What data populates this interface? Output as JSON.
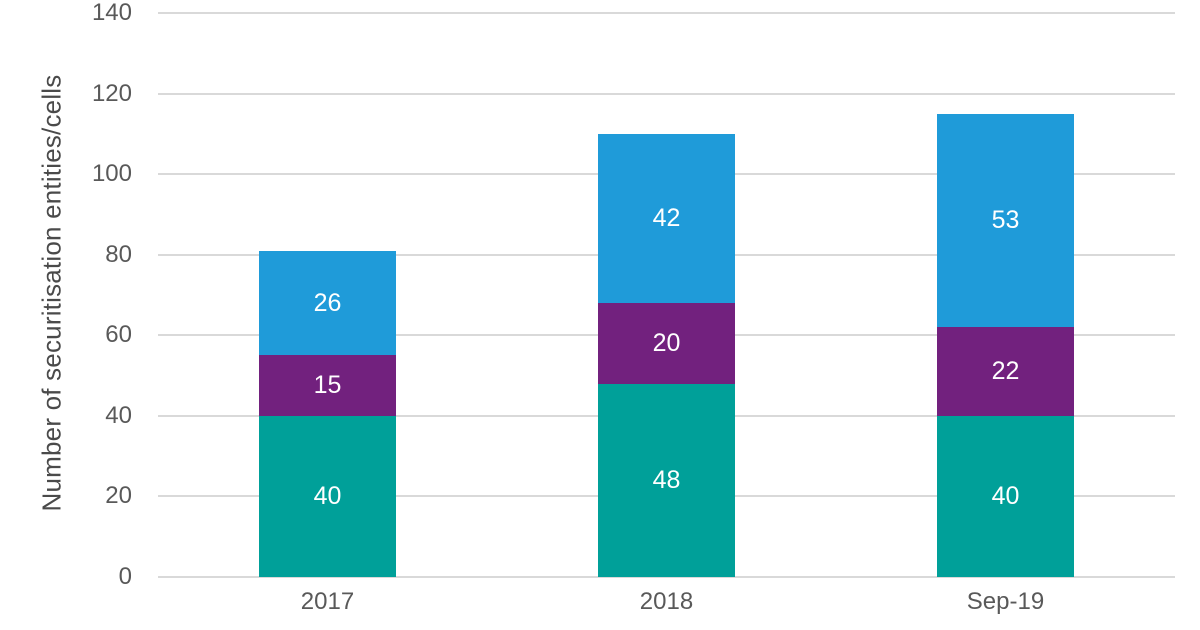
{
  "chart_data": {
    "type": "bar",
    "stacked": true,
    "title": "",
    "xlabel": "",
    "ylabel": "Number of securitisation entities/cells",
    "categories": [
      "2017",
      "2018",
      "Sep-19"
    ],
    "series": [
      {
        "name": "teal-bottom-segment",
        "color": "#00A099",
        "values": [
          40,
          48,
          40
        ]
      },
      {
        "name": "purple-middle-segment",
        "color": "#72217E",
        "values": [
          15,
          20,
          22
        ]
      },
      {
        "name": "blue-top-segment",
        "color": "#1F9BD9",
        "values": [
          26,
          42,
          53
        ]
      }
    ],
    "ylim": [
      0,
      140
    ],
    "yticks": [
      0,
      20,
      40,
      60,
      80,
      100,
      120,
      140
    ],
    "grid": true,
    "legend": false,
    "data_labels": true
  },
  "styles": {
    "background": "#FFFFFF",
    "gridline_color": "#D9D9D9",
    "tick_label_color": "#595959",
    "axis_title_color": "#4A4A4A",
    "data_label_color": "#FFFFFF"
  }
}
